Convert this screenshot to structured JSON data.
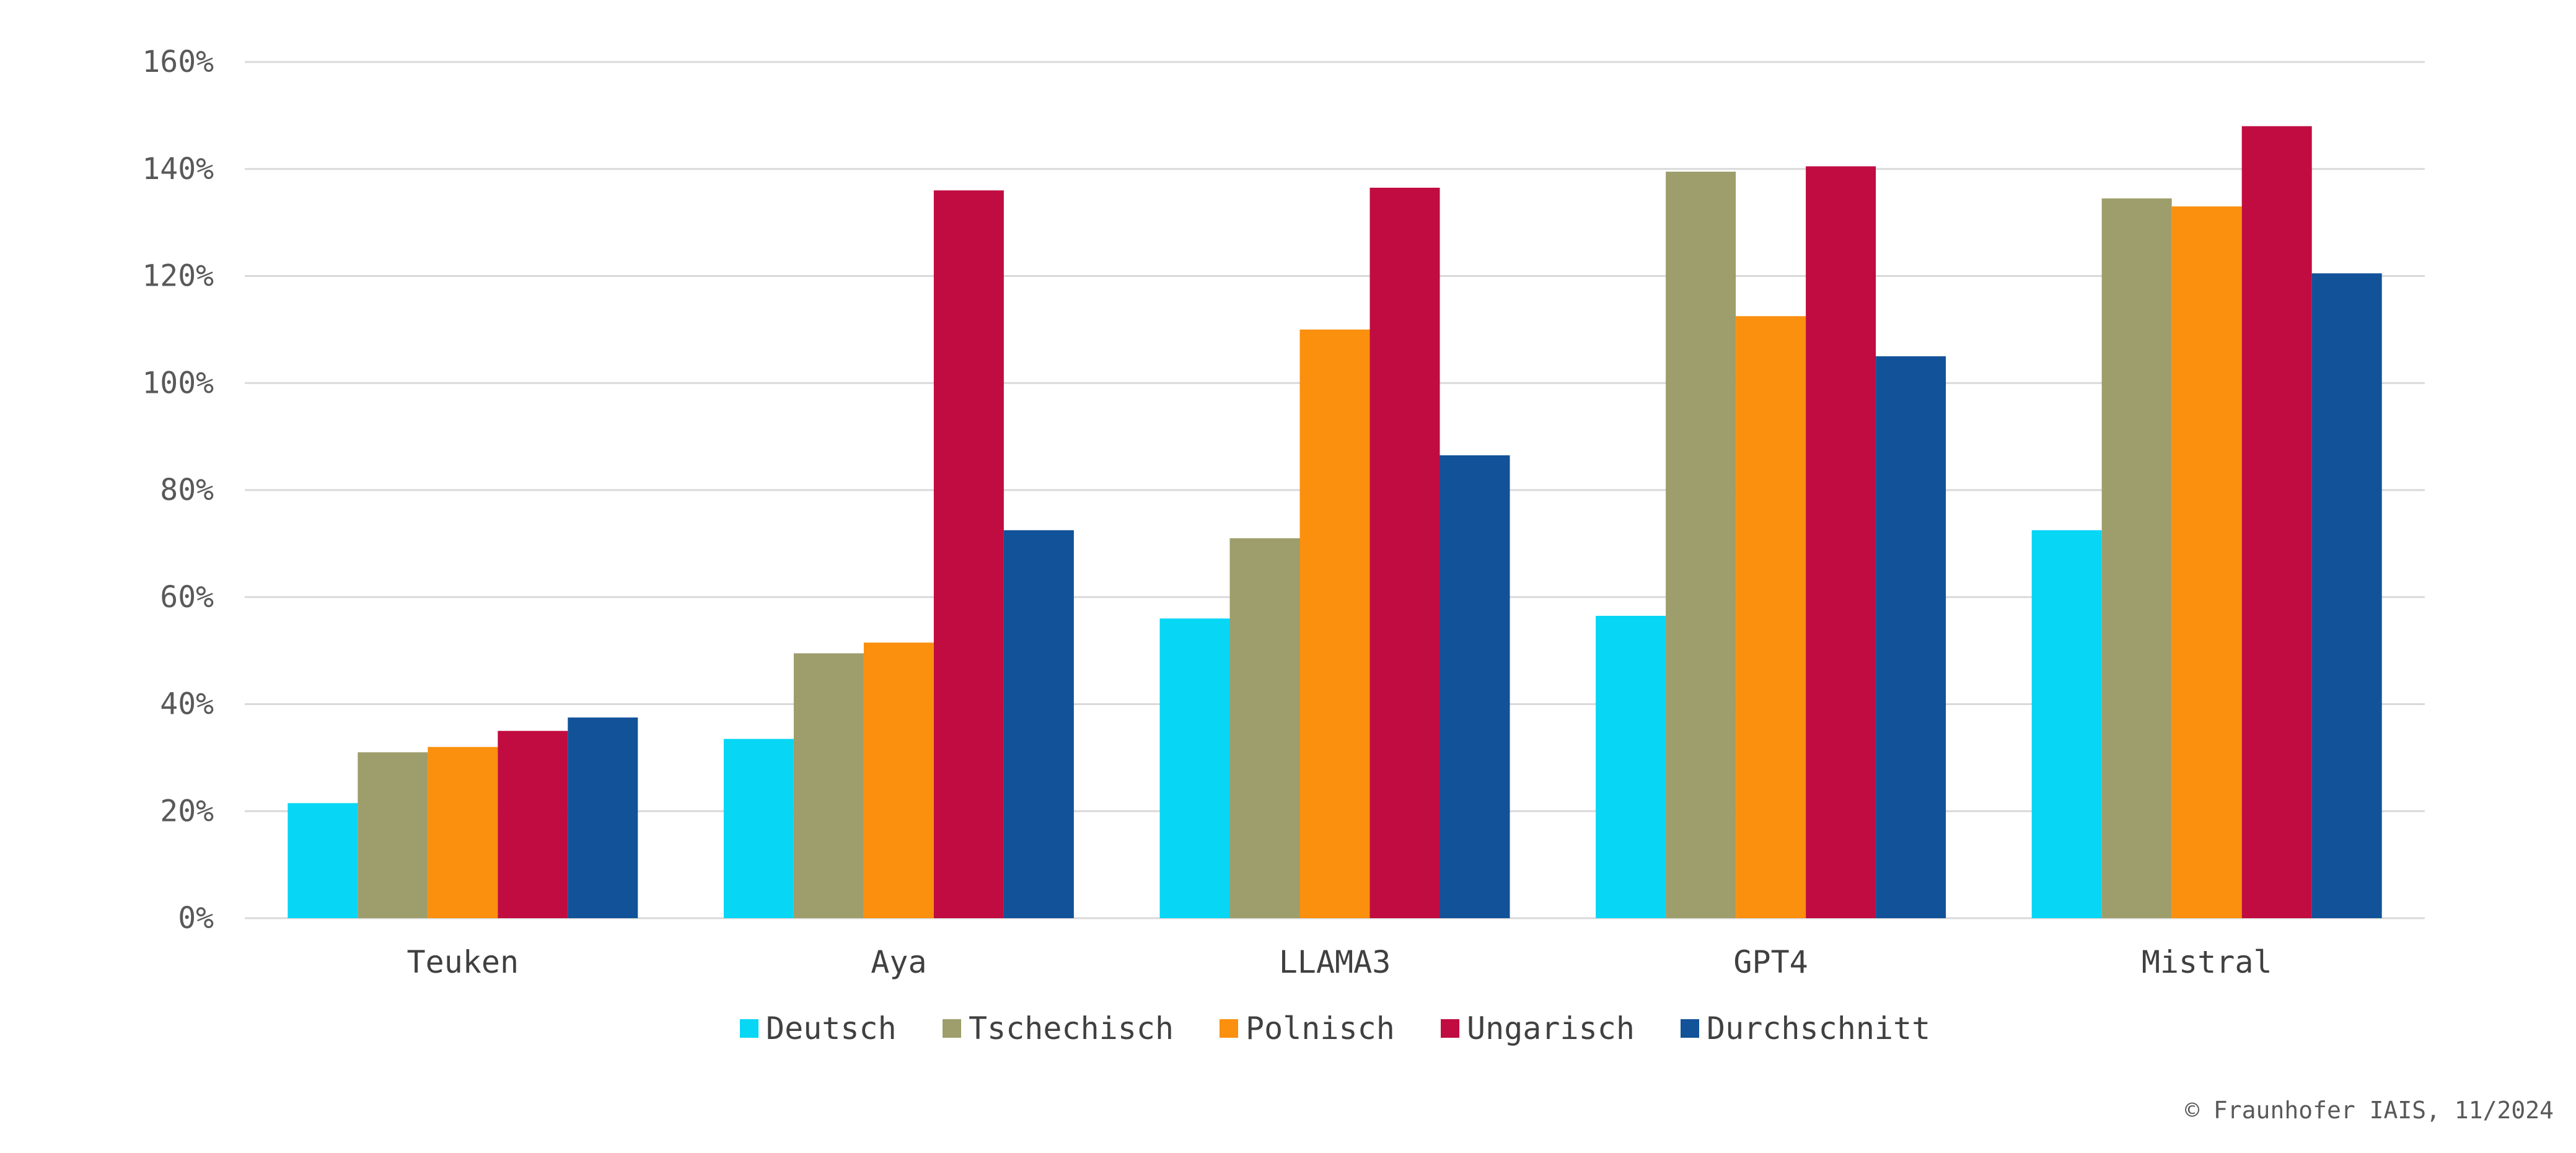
{
  "chart_data": {
    "type": "bar",
    "categories": [
      "Teuken",
      "Aya",
      "LLAMA3",
      "GPT4",
      "Mistral"
    ],
    "series": [
      {
        "name": "Deutsch",
        "color": "#07D6F5",
        "values": [
          21.5,
          33.5,
          56,
          56.5,
          72.5
        ]
      },
      {
        "name": "Tschechisch",
        "color": "#9D9E6B",
        "values": [
          31,
          49.5,
          71,
          139.5,
          134.5
        ]
      },
      {
        "name": "Polnisch",
        "color": "#FB8F0E",
        "values": [
          32,
          51.5,
          110,
          112.5,
          133
        ]
      },
      {
        "name": "Ungarisch",
        "color": "#C00C41",
        "values": [
          35,
          136,
          136.5,
          140.5,
          148
        ]
      },
      {
        "name": "Durchschnitt",
        "color": "#125299",
        "values": [
          37.5,
          72.5,
          86.5,
          105,
          120.5
        ]
      }
    ],
    "ylim": [
      0,
      160
    ],
    "yticks": [
      "0%",
      "20%",
      "40%",
      "60%",
      "80%",
      "100%",
      "120%",
      "140%",
      "160%"
    ],
    "ytick_values": [
      0,
      20,
      40,
      60,
      80,
      100,
      120,
      140,
      160
    ],
    "grid": true,
    "legend_position": "bottom",
    "title": "",
    "xlabel": "",
    "ylabel": ""
  },
  "footer": {
    "copyright": "© Fraunhofer IAIS, 11/2024"
  },
  "colors": {
    "gridline": "#D9D9D9",
    "axis_text": "#595959"
  }
}
